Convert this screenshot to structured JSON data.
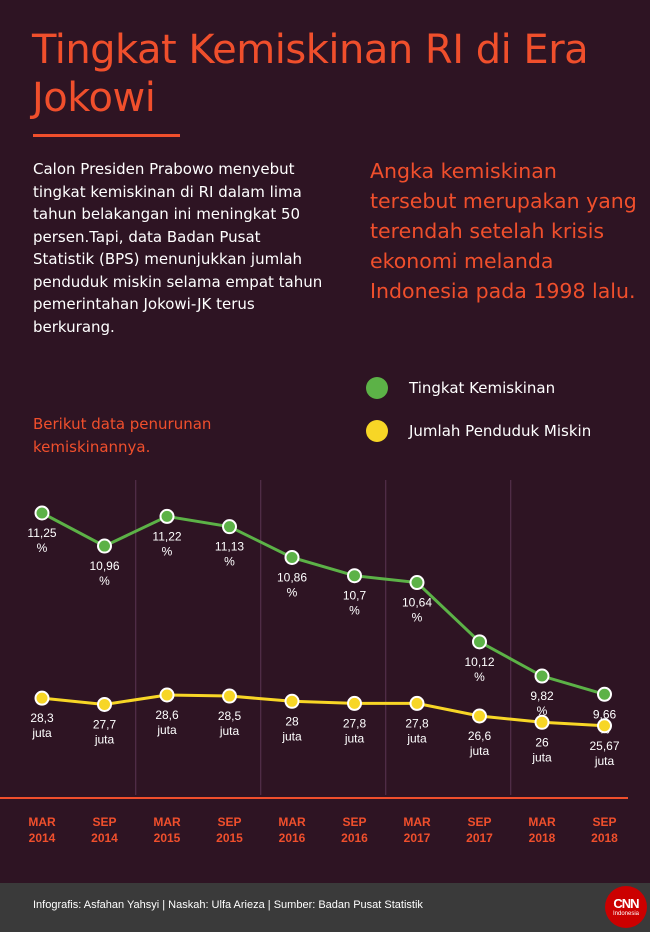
{
  "title": "Tingkat Kemiskinan RI di Era Jokowi",
  "intro": "Calon Presiden Prabowo menyebut tingkat kemiskinan di RI dalam lima tahun belakangan ini meningkat 50 persen.Tapi, data Badan Pusat Statistik (BPS) menunjukkan jumlah penduduk miskin selama empat tahun pemerintahan Jokowi-JK terus berkurang.",
  "lead": "Berikut data penurunan kemiskinannya.",
  "quote": "Angka kemiskinan tersebut merupakan yang terendah setelah krisis ekonomi melanda Indonesia pada 1998 lalu.",
  "legend": [
    {
      "label": "Tingkat Kemiskinan",
      "color": "#5cb247"
    },
    {
      "label": "Jumlah Penduduk Miskin",
      "color": "#f7d626"
    }
  ],
  "footer": "Infografis: Asfahan Yahsyi | Naskah: Ulfa Arieza | Sumber: Badan Pusat Statistik",
  "logo": {
    "main": "CNN",
    "sub": "Indonesia"
  },
  "chart_data": {
    "type": "line",
    "categories": [
      [
        "MAR",
        "2014"
      ],
      [
        "SEP",
        "2014"
      ],
      [
        "MAR",
        "2015"
      ],
      [
        "SEP",
        "2015"
      ],
      [
        "MAR",
        "2016"
      ],
      [
        "SEP",
        "2016"
      ],
      [
        "MAR",
        "2017"
      ],
      [
        "SEP",
        "2017"
      ],
      [
        "MAR",
        "2018"
      ],
      [
        "SEP",
        "2018"
      ]
    ],
    "grid": "vertical lines between years",
    "series": [
      {
        "name": "Tingkat Kemiskinan",
        "color": "#5cb247",
        "unit": "%",
        "values": [
          11.25,
          10.96,
          11.22,
          11.13,
          10.86,
          10.7,
          10.64,
          10.12,
          9.82,
          9.66
        ],
        "labels": [
          "11,25",
          "10,96",
          "11,22",
          "11,13",
          "10,86",
          "10,7",
          "10,64",
          "10,12",
          "9,82",
          "9,66"
        ]
      },
      {
        "name": "Jumlah Penduduk Miskin",
        "color": "#f7d626",
        "unit": "juta",
        "values": [
          28.3,
          27.7,
          28.6,
          28.5,
          28,
          27.8,
          27.8,
          26.6,
          26,
          25.67
        ],
        "labels": [
          "28,3",
          "27,7",
          "28,6",
          "28,5",
          "28",
          "27,8",
          "27,8",
          "26,6",
          "26",
          "25,67"
        ]
      }
    ],
    "axis_color": "#f04f2c"
  }
}
